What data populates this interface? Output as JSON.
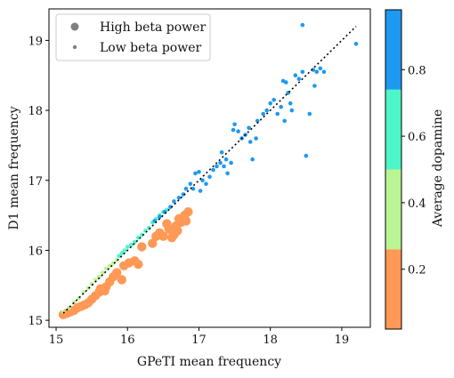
{
  "chart_data": {
    "type": "scatter",
    "title": "",
    "xlabel": "GPeTI mean frequency",
    "ylabel": "D1 mean frequency",
    "xlim": [
      14.9,
      19.4
    ],
    "ylim": [
      14.9,
      19.45
    ],
    "xticks": [
      15,
      16,
      17,
      18,
      19
    ],
    "yticks": [
      15,
      16,
      17,
      18,
      19
    ],
    "grid": false,
    "legend_position": "top-left",
    "legend": [
      {
        "label": "High beta power",
        "marker": "large",
        "color": "#808080"
      },
      {
        "label": "Low beta power",
        "marker": "small",
        "color": "#808080"
      }
    ],
    "reference_line": {
      "style": "dotted",
      "color": "#000000",
      "from": [
        15.1,
        15.1
      ],
      "to": [
        19.2,
        19.2
      ]
    },
    "colorbar": {
      "label": "Average dopamine",
      "range": [
        0.02,
        0.98
      ],
      "ticks": [
        0.2,
        0.4,
        0.6,
        0.8
      ],
      "bins": [
        {
          "from": 0.02,
          "to": 0.26,
          "color": "#FF9955"
        },
        {
          "from": 0.26,
          "to": 0.5,
          "color": "#B8F593"
        },
        {
          "from": 0.5,
          "to": 0.74,
          "color": "#4DF5C8"
        },
        {
          "from": 0.74,
          "to": 0.98,
          "color": "#1E99F0"
        }
      ]
    },
    "series": [
      {
        "beta": "high",
        "dopamine": 0.14,
        "color": "#FF9955",
        "points": [
          [
            15.1,
            15.08
          ],
          [
            15.15,
            15.1
          ],
          [
            15.2,
            15.12
          ],
          [
            15.25,
            15.14
          ],
          [
            15.3,
            15.18
          ],
          [
            15.35,
            15.2
          ],
          [
            15.4,
            15.22
          ],
          [
            15.45,
            15.25
          ],
          [
            15.5,
            15.3
          ],
          [
            15.55,
            15.35
          ],
          [
            15.6,
            15.4
          ],
          [
            15.62,
            15.45
          ],
          [
            15.68,
            15.42
          ],
          [
            15.7,
            15.48
          ],
          [
            15.75,
            15.55
          ],
          [
            15.8,
            15.62
          ],
          [
            15.85,
            15.68
          ],
          [
            15.92,
            15.58
          ],
          [
            15.95,
            15.78
          ],
          [
            16.02,
            15.82
          ],
          [
            16.1,
            15.85
          ],
          [
            16.15,
            15.8
          ],
          [
            16.2,
            16.05
          ],
          [
            16.35,
            16.1
          ],
          [
            16.4,
            16.2
          ],
          [
            16.45,
            16.25
          ],
          [
            16.5,
            16.2
          ],
          [
            16.55,
            16.38
          ],
          [
            16.62,
            16.18
          ],
          [
            16.65,
            16.22
          ],
          [
            16.7,
            16.28
          ],
          [
            16.72,
            16.45
          ],
          [
            16.75,
            16.4
          ],
          [
            16.8,
            16.5
          ],
          [
            16.82,
            16.42
          ],
          [
            16.85,
            16.55
          ],
          [
            16.68,
            16.35
          ],
          [
            16.58,
            16.3
          ]
        ]
      },
      {
        "beta": "low",
        "dopamine": 0.38,
        "color": "#B8F593",
        "points": [
          [
            15.1,
            15.12
          ],
          [
            15.18,
            15.18
          ],
          [
            15.25,
            15.26
          ],
          [
            15.32,
            15.32
          ],
          [
            15.38,
            15.4
          ],
          [
            15.45,
            15.46
          ],
          [
            15.5,
            15.52
          ],
          [
            15.55,
            15.58
          ],
          [
            15.6,
            15.62
          ],
          [
            15.65,
            15.68
          ],
          [
            15.7,
            15.74
          ],
          [
            15.75,
            15.78
          ],
          [
            15.8,
            15.82
          ],
          [
            15.85,
            15.86
          ]
        ]
      },
      {
        "beta": "low",
        "dopamine": 0.62,
        "color": "#4DF5C8",
        "points": [
          [
            15.88,
            15.92
          ],
          [
            15.92,
            15.96
          ],
          [
            15.96,
            16.0
          ],
          [
            16.0,
            16.05
          ],
          [
            16.05,
            16.08
          ],
          [
            16.1,
            16.12
          ],
          [
            16.15,
            16.18
          ],
          [
            16.2,
            16.22
          ],
          [
            16.25,
            16.28
          ],
          [
            16.3,
            16.32
          ],
          [
            16.35,
            16.4
          ],
          [
            16.4,
            16.45
          ],
          [
            16.45,
            16.5
          ],
          [
            16.5,
            16.55
          ],
          [
            16.55,
            16.58
          ]
        ]
      },
      {
        "beta": "low",
        "dopamine": 0.86,
        "color": "#1E99F0",
        "points": [
          [
            16.38,
            16.42
          ],
          [
            16.45,
            16.48
          ],
          [
            16.52,
            16.55
          ],
          [
            16.6,
            16.62
          ],
          [
            16.65,
            16.7
          ],
          [
            16.72,
            16.75
          ],
          [
            16.78,
            16.8
          ],
          [
            16.82,
            16.88
          ],
          [
            16.88,
            16.95
          ],
          [
            16.92,
            16.88
          ],
          [
            16.95,
            17.1
          ],
          [
            17.0,
            17.12
          ],
          [
            17.02,
            16.85
          ],
          [
            17.05,
            17.0
          ],
          [
            17.1,
            16.95
          ],
          [
            17.15,
            17.05
          ],
          [
            17.2,
            17.15
          ],
          [
            17.25,
            17.2
          ],
          [
            17.3,
            17.25
          ],
          [
            17.32,
            17.4
          ],
          [
            17.35,
            17.2
          ],
          [
            17.38,
            17.3
          ],
          [
            17.4,
            17.1
          ],
          [
            17.45,
            17.25
          ],
          [
            17.5,
            17.8
          ],
          [
            17.55,
            17.7
          ],
          [
            17.6,
            17.6
          ],
          [
            17.65,
            17.65
          ],
          [
            17.7,
            17.75
          ],
          [
            17.72,
            17.55
          ],
          [
            17.75,
            17.3
          ],
          [
            17.8,
            17.6
          ],
          [
            17.82,
            17.85
          ],
          [
            17.9,
            17.95
          ],
          [
            17.95,
            18.0
          ],
          [
            18.0,
            18.1
          ],
          [
            18.05,
            18.15
          ],
          [
            18.1,
            17.95
          ],
          [
            18.15,
            18.05
          ],
          [
            18.2,
            17.85
          ],
          [
            18.22,
            18.4
          ],
          [
            18.25,
            18.25
          ],
          [
            18.28,
            18.1
          ],
          [
            18.3,
            18.0
          ],
          [
            18.35,
            18.5
          ],
          [
            18.4,
            18.45
          ],
          [
            18.45,
            18.55
          ],
          [
            18.5,
            17.35
          ],
          [
            18.55,
            17.95
          ],
          [
            18.6,
            18.58
          ],
          [
            18.62,
            18.35
          ],
          [
            18.65,
            18.55
          ],
          [
            18.7,
            18.6
          ],
          [
            18.75,
            18.55
          ],
          [
            18.45,
            19.22
          ],
          [
            19.2,
            18.95
          ],
          [
            18.18,
            18.42
          ],
          [
            17.48,
            17.72
          ]
        ]
      }
    ]
  }
}
